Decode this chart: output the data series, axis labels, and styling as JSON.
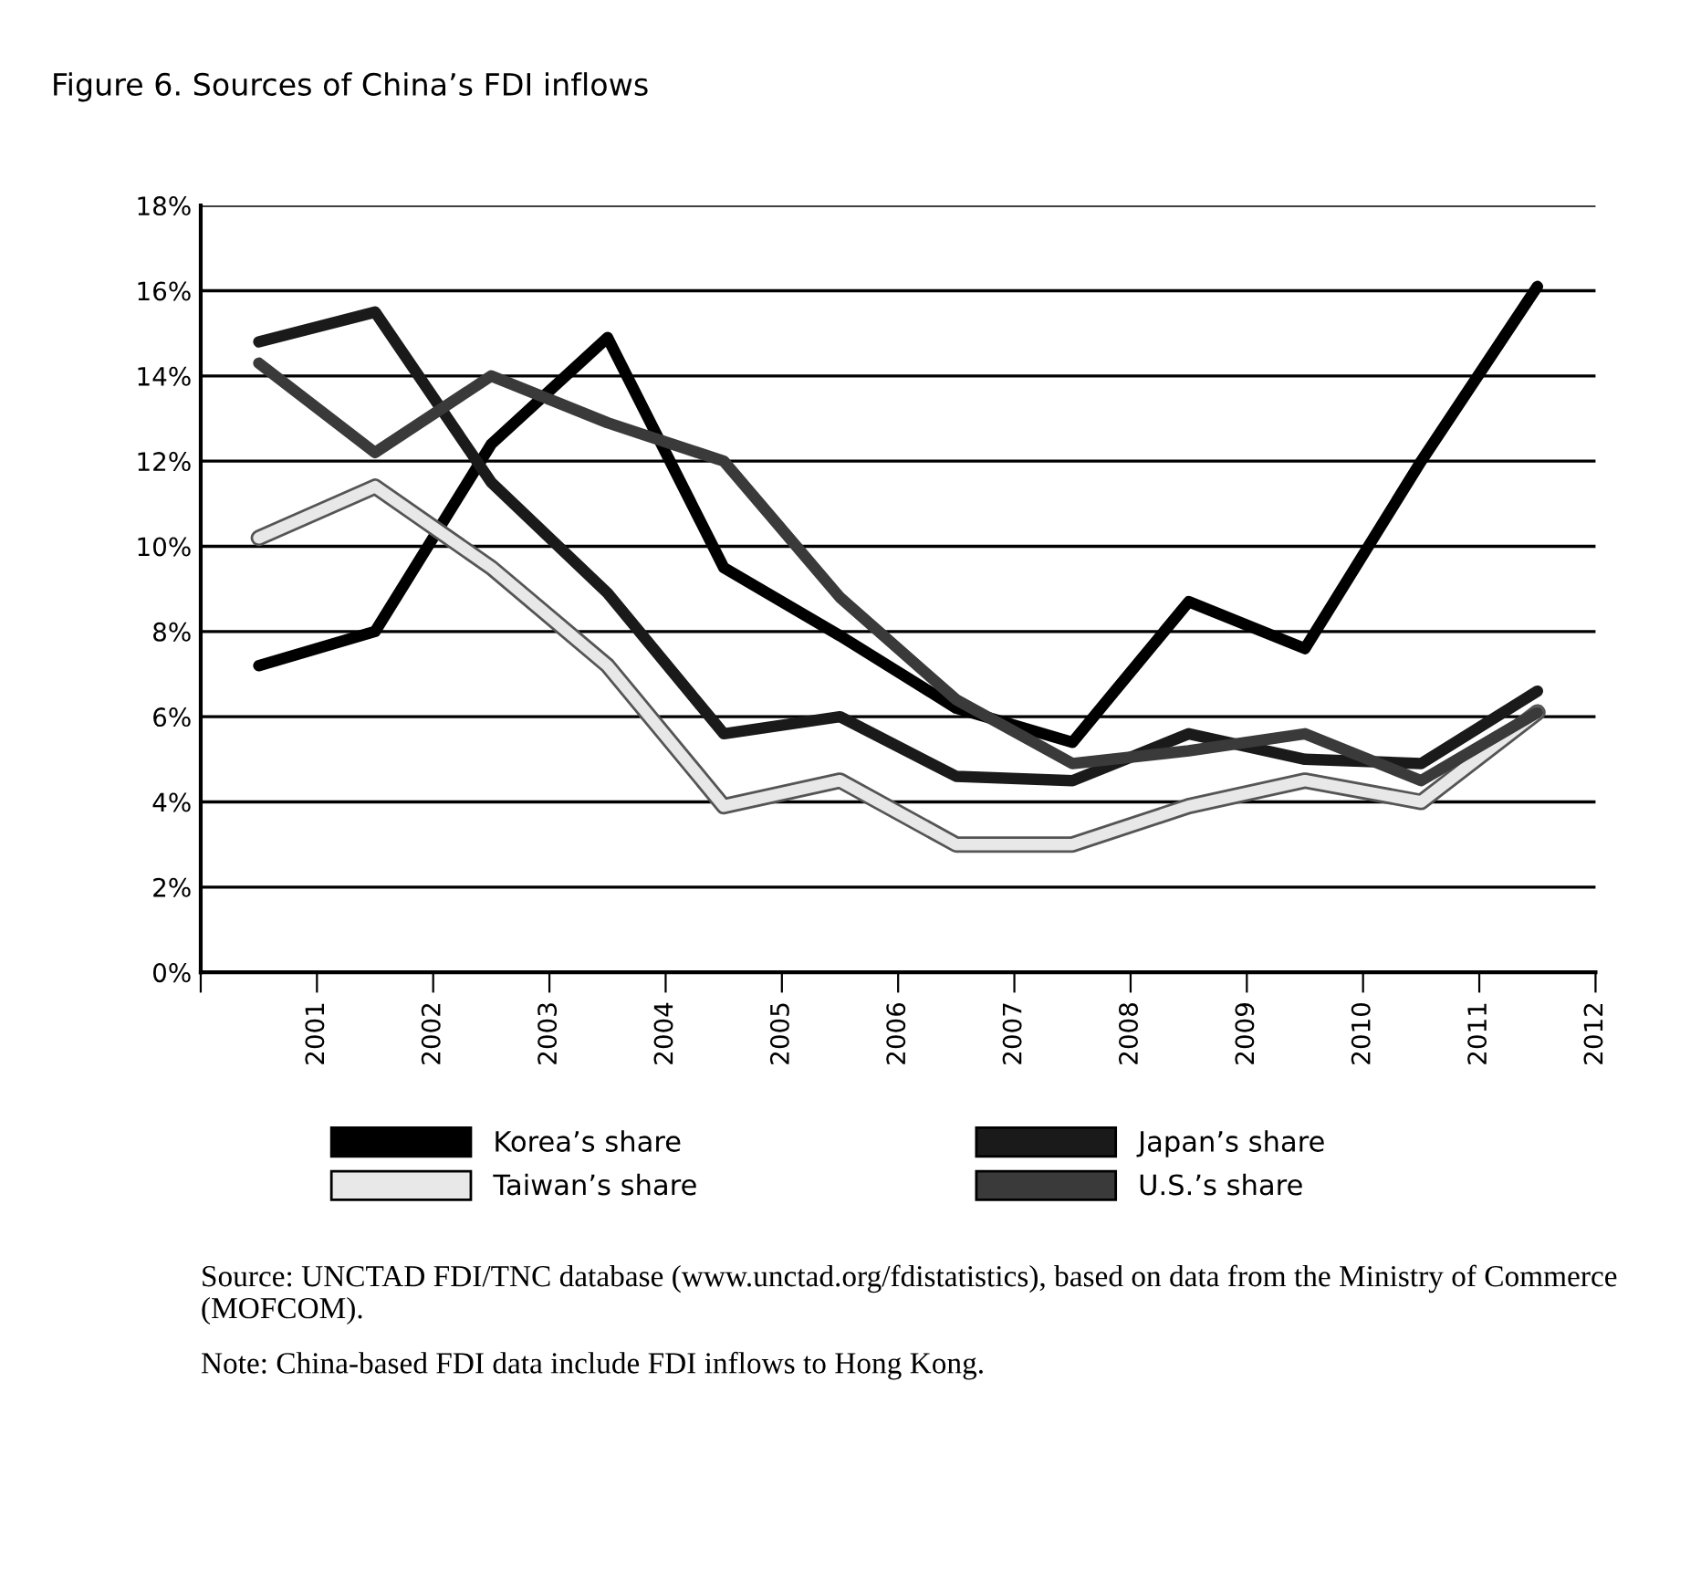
{
  "chart_data": {
    "type": "line",
    "title": "Figure 6. Sources of China’s FDI inflows",
    "x": [
      2000.5,
      2001.5,
      2002.5,
      2003.5,
      2004.5,
      2005.5,
      2006.5,
      2007.5,
      2008.5,
      2009.5,
      2010.5,
      2011.5
    ],
    "series": [
      {
        "name": "Korea’s share",
        "color": "#000000",
        "values": [
          7.2,
          8.0,
          12.4,
          14.9,
          9.5,
          7.9,
          6.2,
          5.4,
          8.7,
          7.6,
          12.0,
          16.1
        ]
      },
      {
        "name": "Japan’s share",
        "color": "#1a1a1a",
        "values": [
          14.8,
          15.5,
          11.5,
          8.9,
          5.6,
          6.0,
          4.6,
          4.5,
          5.6,
          5.0,
          4.9,
          6.6
        ]
      },
      {
        "name": "Taiwan’s share",
        "color": "#e8e8e8",
        "values": [
          10.2,
          11.4,
          9.5,
          7.2,
          3.9,
          4.5,
          3.0,
          3.0,
          3.9,
          4.5,
          4.0,
          6.1
        ]
      },
      {
        "name": "U.S.’s share",
        "color": "#3a3a3a",
        "values": [
          14.3,
          12.2,
          14.0,
          12.9,
          12.0,
          8.8,
          6.4,
          4.9,
          5.2,
          5.6,
          4.5,
          6.1
        ]
      }
    ],
    "xlim": [
      2000,
      2012
    ],
    "xticks": [
      {
        "value": 2000,
        "label": null
      },
      2001,
      2002,
      2003,
      2004,
      2005,
      2006,
      2007,
      2008,
      2009,
      2010,
      2011,
      2012
    ],
    "ylim": [
      0,
      18
    ],
    "yticks": [
      {
        "value": 0,
        "label": "0%"
      },
      {
        "value": 2,
        "label": "2%"
      },
      {
        "value": 4,
        "label": "4%"
      },
      {
        "value": 6,
        "label": "6%"
      },
      {
        "value": 8,
        "label": "8%"
      },
      {
        "value": 10,
        "label": "10%"
      },
      {
        "value": 12,
        "label": "12%"
      },
      {
        "value": 14,
        "label": "14%"
      },
      {
        "value": 16,
        "label": "16%"
      },
      {
        "value": 18,
        "label": "18%"
      }
    ],
    "grid": "y",
    "legend": "bottom",
    "marker": "none",
    "line_style": "solid",
    "annotations": [
      "Source: UNCTAD FDI/TNC database (www.unctad.org/fdistatistics), based on data from the Ministry of Commerce (MOFCOM).",
      "Note: China-based FDI data include FDI inflows to Hong Kong."
    ]
  }
}
